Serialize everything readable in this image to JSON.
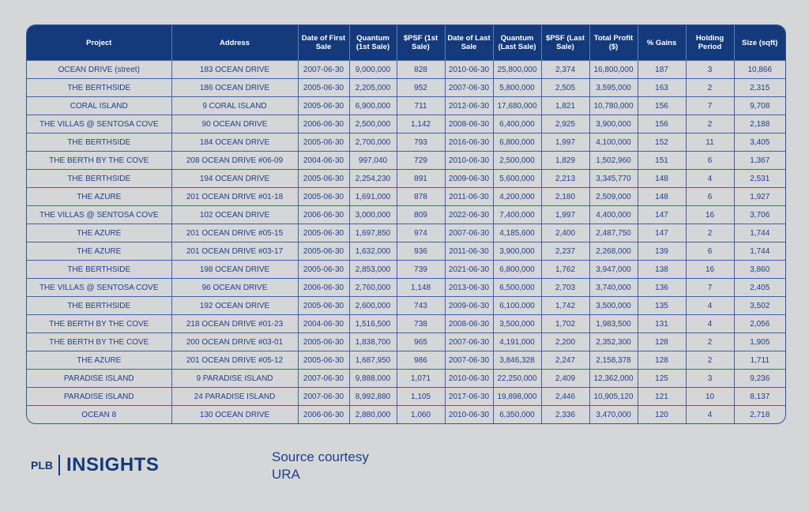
{
  "table": {
    "headers": [
      "Project",
      "Address",
      "Date of First Sale",
      "Quantum (1st Sale)",
      "$PSF (1st Sale)",
      "Date of Last Sale",
      "Quantum (Last Sale)",
      "$PSF (Last Sale)",
      "Total Profit ($)",
      "% Gains",
      "Holding Period",
      "Size (sqft)"
    ],
    "rows": [
      [
        "OCEAN DRIVE (street)",
        "183 OCEAN DRIVE",
        "2007-06-30",
        "9,000,000",
        "828",
        "2010-06-30",
        "25,800,000",
        "2,374",
        "16,800,000",
        "187",
        "3",
        "10,866"
      ],
      [
        "THE BERTHSIDE",
        "186 OCEAN DRIVE",
        "2005-06-30",
        "2,205,000",
        "952",
        "2007-06-30",
        "5,800,000",
        "2,505",
        "3,595,000",
        "163",
        "2",
        "2,315"
      ],
      [
        "CORAL ISLAND",
        "9 CORAL ISLAND",
        "2005-06-30",
        "6,900,000",
        "711",
        "2012-06-30",
        "17,680,000",
        "1,821",
        "10,780,000",
        "156",
        "7",
        "9,708"
      ],
      [
        "THE VILLAS @ SENTOSA COVE",
        "90 OCEAN DRIVE",
        "2006-06-30",
        "2,500,000",
        "1,142",
        "2008-06-30",
        "6,400,000",
        "2,925",
        "3,900,000",
        "156",
        "2",
        "2,188"
      ],
      [
        "THE BERTHSIDE",
        "184 OCEAN DRIVE",
        "2005-06-30",
        "2,700,000",
        "793",
        "2016-06-30",
        "6,800,000",
        "1,997",
        "4,100,000",
        "152",
        "11",
        "3,405"
      ],
      [
        "THE BERTH BY THE COVE",
        "208 OCEAN DRIVE #06-09",
        "2004-06-30",
        "997,040",
        "729",
        "2010-06-30",
        "2,500,000",
        "1,829",
        "1,502,960",
        "151",
        "6",
        "1,367"
      ],
      [
        "THE BERTHSIDE",
        "194 OCEAN DRIVE",
        "2005-06-30",
        "2,254,230",
        "891",
        "2009-06-30",
        "5,600,000",
        "2,213",
        "3,345,770",
        "148",
        "4",
        "2,531"
      ],
      [
        "THE AZURE",
        "201 OCEAN DRIVE #01-18",
        "2005-06-30",
        "1,691,000",
        "878",
        "2011-06-30",
        "4,200,000",
        "2,180",
        "2,509,000",
        "148",
        "6",
        "1,927"
      ],
      [
        "THE VILLAS @ SENTOSA COVE",
        "102 OCEAN DRIVE",
        "2006-06-30",
        "3,000,000",
        "809",
        "2022-06-30",
        "7,400,000",
        "1,997",
        "4,400,000",
        "147",
        "16",
        "3,706"
      ],
      [
        "THE AZURE",
        "201 OCEAN DRIVE #05-15",
        "2005-06-30",
        "1,697,850",
        "974",
        "2007-06-30",
        "4,185,600",
        "2,400",
        "2,487,750",
        "147",
        "2",
        "1,744"
      ],
      [
        "THE AZURE",
        "201 OCEAN DRIVE #03-17",
        "2005-06-30",
        "1,632,000",
        "936",
        "2011-06-30",
        "3,900,000",
        "2,237",
        "2,268,000",
        "139",
        "6",
        "1,744"
      ],
      [
        "THE BERTHSIDE",
        "198 OCEAN DRIVE",
        "2005-06-30",
        "2,853,000",
        "739",
        "2021-06-30",
        "6,800,000",
        "1,762",
        "3,947,000",
        "138",
        "16",
        "3,860"
      ],
      [
        "THE VILLAS @ SENTOSA COVE",
        "96 OCEAN DRIVE",
        "2006-06-30",
        "2,760,000",
        "1,148",
        "2013-06-30",
        "6,500,000",
        "2,703",
        "3,740,000",
        "136",
        "7",
        "2,405"
      ],
      [
        "THE BERTHSIDE",
        "192 OCEAN DRIVE",
        "2005-06-30",
        "2,600,000",
        "743",
        "2009-06-30",
        "6,100,000",
        "1,742",
        "3,500,000",
        "135",
        "4",
        "3,502"
      ],
      [
        "THE BERTH BY THE COVE",
        "218 OCEAN DRIVE #01-23",
        "2004-06-30",
        "1,516,500",
        "738",
        "2008-06-30",
        "3,500,000",
        "1,702",
        "1,983,500",
        "131",
        "4",
        "2,056"
      ],
      [
        "THE BERTH BY THE COVE",
        "200 OCEAN DRIVE #03-01",
        "2005-06-30",
        "1,838,700",
        "965",
        "2007-06-30",
        "4,191,000",
        "2,200",
        "2,352,300",
        "128",
        "2",
        "1,905"
      ],
      [
        "THE AZURE",
        "201 OCEAN DRIVE #05-12",
        "2005-06-30",
        "1,687,950",
        "986",
        "2007-06-30",
        "3,846,328",
        "2,247",
        "2,158,378",
        "128",
        "2",
        "1,711"
      ],
      [
        "PARADISE ISLAND",
        "9 PARADISE ISLAND",
        "2007-06-30",
        "9,888,000",
        "1,071",
        "2010-06-30",
        "22,250,000",
        "2,409",
        "12,362,000",
        "125",
        "3",
        "9,236"
      ],
      [
        "PARADISE ISLAND",
        "24 PARADISE ISLAND",
        "2007-06-30",
        "8,992,880",
        "1,105",
        "2017-06-30",
        "19,898,000",
        "2,446",
        "10,905,120",
        "121",
        "10",
        "8,137"
      ],
      [
        "OCEAN 8",
        "130 OCEAN DRIVE",
        "2006-06-30",
        "2,880,000",
        "1,060",
        "2010-06-30",
        "6,350,000",
        "2,336",
        "3,470,000",
        "120",
        "4",
        "2,718"
      ]
    ]
  },
  "footer": {
    "logo_plb": "PLB",
    "logo_insights": "INSIGHTS",
    "source_line1": "Source courtesy",
    "source_line2": "URA"
  },
  "colors": {
    "header_bg": "#143a7c",
    "text": "#1f3f8d",
    "background": "#d5d6d8"
  }
}
